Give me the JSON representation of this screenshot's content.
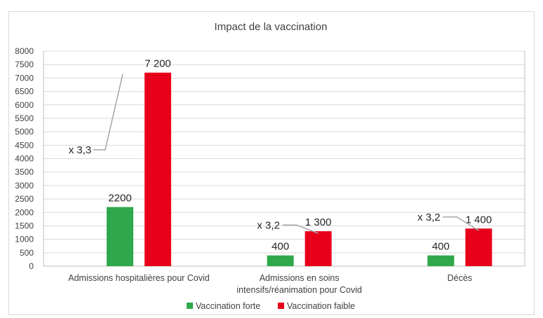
{
  "chart_data": {
    "type": "bar",
    "title": "Impact de la vaccination",
    "categories": [
      [
        "Admissions hospitalières pour Covid"
      ],
      [
        "Admissions en soins",
        "intensifs/réanimation pour Covid"
      ],
      [
        "Décès"
      ]
    ],
    "series": [
      {
        "name": "Vaccination forte",
        "color": "#2ea84a",
        "values": [
          2200,
          400,
          400
        ],
        "labels": [
          "2200",
          "400",
          "400"
        ]
      },
      {
        "name": "Vaccination faible",
        "color": "#e8001b",
        "values": [
          7200,
          1300,
          1400
        ],
        "labels": [
          "7 200",
          "1 300",
          "1 400"
        ]
      }
    ],
    "ratio_annotations": [
      "x 3,3",
      "x 3,2",
      "x 3,2"
    ],
    "ylim": [
      0,
      8000
    ],
    "yticks": [
      0,
      500,
      1000,
      1500,
      2000,
      2500,
      3000,
      3500,
      4000,
      4500,
      5000,
      5500,
      6000,
      6500,
      7000,
      7500,
      8000
    ],
    "grid": true,
    "legend_position": "bottom"
  }
}
